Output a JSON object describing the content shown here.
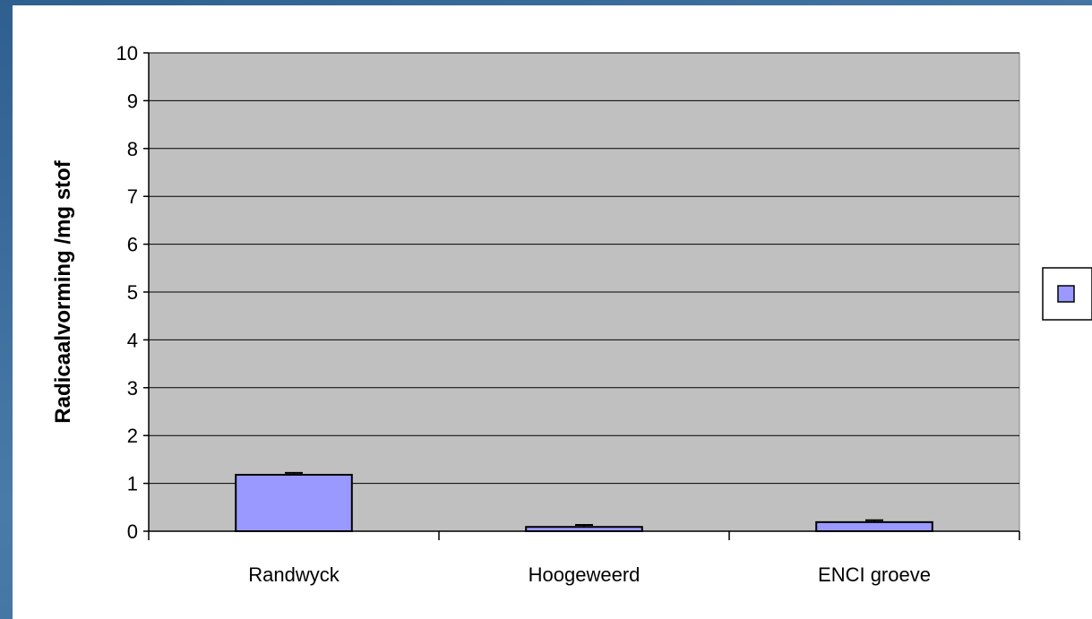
{
  "chart_data": {
    "type": "bar",
    "categories": [
      "Randwyck",
      "Hoogeweerd",
      "ENCI groeve"
    ],
    "values": [
      1.18,
      0.09,
      0.19
    ],
    "errors": [
      0.04,
      0.04,
      0.04
    ],
    "xlabel": "",
    "ylabel": "Radicaalvorming /mg stof",
    "ylim": [
      0,
      10
    ],
    "yticks": [
      "0",
      "1",
      "2",
      "3",
      "4",
      "5",
      "6",
      "7",
      "8",
      "9",
      "10"
    ],
    "grid": true,
    "legend": "right",
    "colors": {
      "bar": "#9999ff",
      "plot_bg": "#c0c0c0",
      "bar_stroke": "#000000"
    }
  }
}
